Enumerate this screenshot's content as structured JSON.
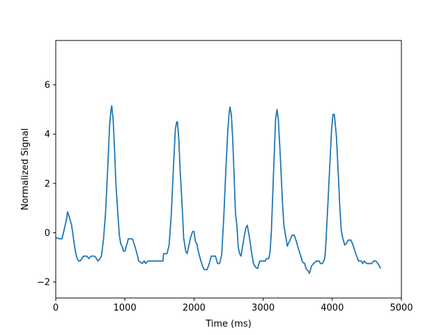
{
  "chart_data": {
    "type": "line",
    "title": "",
    "xlabel": "Time (ms)",
    "ylabel": "Normalized Signal",
    "xlim": [
      0,
      5000
    ],
    "ylim": [
      -2.65,
      7.8
    ],
    "xticks": [
      0,
      1000,
      2000,
      3000,
      4000,
      5000
    ],
    "xtick_labels": [
      "0",
      "1000",
      "2000",
      "3000",
      "4000",
      "5000"
    ],
    "yticks": [
      -2,
      0,
      2,
      4,
      6
    ],
    "ytick_labels": [
      "−2",
      "0",
      "2",
      "4",
      "6"
    ],
    "grid": false,
    "legend": "none",
    "colors": {
      "line": "#1f77b4",
      "axes": "#000000",
      "background": "#ffffff"
    },
    "series": [
      {
        "points": [
          [
            0,
            -0.2
          ],
          [
            60,
            -0.25
          ],
          [
            90,
            -0.25
          ],
          [
            120,
            0.1
          ],
          [
            160,
            0.6
          ],
          [
            170,
            0.85
          ],
          [
            200,
            0.6
          ],
          [
            230,
            0.3
          ],
          [
            260,
            -0.3
          ],
          [
            280,
            -0.7
          ],
          [
            300,
            -0.95
          ],
          [
            310,
            -1.05
          ],
          [
            330,
            -1.15
          ],
          [
            350,
            -1.15
          ],
          [
            380,
            -1.05
          ],
          [
            400,
            -0.95
          ],
          [
            450,
            -0.95
          ],
          [
            480,
            -1.05
          ],
          [
            510,
            -0.95
          ],
          [
            560,
            -0.95
          ],
          [
            590,
            -1.05
          ],
          [
            610,
            -1.15
          ],
          [
            640,
            -1.05
          ],
          [
            660,
            -0.95
          ],
          [
            690,
            -0.3
          ],
          [
            720,
            0.8
          ],
          [
            750,
            2.5
          ],
          [
            780,
            4.4
          ],
          [
            800,
            5.0
          ],
          [
            810,
            5.15
          ],
          [
            830,
            4.6
          ],
          [
            850,
            3.4
          ],
          [
            870,
            2.0
          ],
          [
            900,
            0.7
          ],
          [
            920,
            -0.1
          ],
          [
            940,
            -0.45
          ],
          [
            960,
            -0.55
          ],
          [
            980,
            -0.75
          ],
          [
            1000,
            -0.75
          ],
          [
            1030,
            -0.45
          ],
          [
            1050,
            -0.25
          ],
          [
            1110,
            -0.25
          ],
          [
            1150,
            -0.6
          ],
          [
            1180,
            -0.9
          ],
          [
            1200,
            -1.15
          ],
          [
            1250,
            -1.25
          ],
          [
            1280,
            -1.15
          ],
          [
            1300,
            -1.25
          ],
          [
            1330,
            -1.15
          ],
          [
            1550,
            -1.15
          ],
          [
            1560,
            -0.85
          ],
          [
            1610,
            -0.85
          ],
          [
            1640,
            -0.5
          ],
          [
            1670,
            0.7
          ],
          [
            1700,
            2.5
          ],
          [
            1730,
            4.2
          ],
          [
            1750,
            4.5
          ],
          [
            1760,
            4.5
          ],
          [
            1780,
            3.8
          ],
          [
            1800,
            2.5
          ],
          [
            1830,
            1.0
          ],
          [
            1850,
            -0.2
          ],
          [
            1880,
            -0.75
          ],
          [
            1900,
            -0.85
          ],
          [
            1920,
            -0.6
          ],
          [
            1950,
            -0.2
          ],
          [
            1980,
            0.05
          ],
          [
            2000,
            0.05
          ],
          [
            2020,
            -0.35
          ],
          [
            2040,
            -0.45
          ],
          [
            2070,
            -0.85
          ],
          [
            2100,
            -1.15
          ],
          [
            2130,
            -1.4
          ],
          [
            2150,
            -1.5
          ],
          [
            2190,
            -1.5
          ],
          [
            2220,
            -1.25
          ],
          [
            2250,
            -0.95
          ],
          [
            2310,
            -0.95
          ],
          [
            2340,
            -1.25
          ],
          [
            2370,
            -1.25
          ],
          [
            2400,
            -0.9
          ],
          [
            2430,
            0.6
          ],
          [
            2460,
            2.5
          ],
          [
            2490,
            4.2
          ],
          [
            2510,
            4.9
          ],
          [
            2520,
            5.1
          ],
          [
            2540,
            4.8
          ],
          [
            2560,
            3.8
          ],
          [
            2580,
            2.3
          ],
          [
            2600,
            0.8
          ],
          [
            2620,
            0.3
          ],
          [
            2640,
            -0.6
          ],
          [
            2660,
            -0.85
          ],
          [
            2680,
            -0.95
          ],
          [
            2700,
            -0.6
          ],
          [
            2730,
            -0.1
          ],
          [
            2750,
            0.2
          ],
          [
            2770,
            0.3
          ],
          [
            2800,
            -0.15
          ],
          [
            2830,
            -0.75
          ],
          [
            2860,
            -1.25
          ],
          [
            2890,
            -1.4
          ],
          [
            2920,
            -1.45
          ],
          [
            2950,
            -1.15
          ],
          [
            3030,
            -1.15
          ],
          [
            3050,
            -1.05
          ],
          [
            3080,
            -1.05
          ],
          [
            3100,
            -0.8
          ],
          [
            3120,
            0.1
          ],
          [
            3150,
            2.4
          ],
          [
            3180,
            4.6
          ],
          [
            3200,
            5.0
          ],
          [
            3220,
            4.6
          ],
          [
            3250,
            3.0
          ],
          [
            3280,
            1.2
          ],
          [
            3300,
            0.3
          ],
          [
            3330,
            -0.2
          ],
          [
            3350,
            -0.55
          ],
          [
            3370,
            -0.4
          ],
          [
            3390,
            -0.3
          ],
          [
            3420,
            -0.1
          ],
          [
            3450,
            -0.1
          ],
          [
            3480,
            -0.35
          ],
          [
            3510,
            -0.65
          ],
          [
            3540,
            -0.9
          ],
          [
            3570,
            -1.2
          ],
          [
            3600,
            -1.25
          ],
          [
            3620,
            -1.45
          ],
          [
            3650,
            -1.55
          ],
          [
            3670,
            -1.65
          ],
          [
            3700,
            -1.35
          ],
          [
            3730,
            -1.25
          ],
          [
            3770,
            -1.15
          ],
          [
            3810,
            -1.15
          ],
          [
            3830,
            -1.25
          ],
          [
            3860,
            -1.25
          ],
          [
            3890,
            -1.05
          ],
          [
            3900,
            -0.8
          ],
          [
            3930,
            0.8
          ],
          [
            3960,
            2.5
          ],
          [
            3990,
            4.2
          ],
          [
            4010,
            4.8
          ],
          [
            4030,
            4.8
          ],
          [
            4060,
            3.9
          ],
          [
            4090,
            2.2
          ],
          [
            4110,
            1.0
          ],
          [
            4130,
            0.1
          ],
          [
            4150,
            -0.2
          ],
          [
            4180,
            -0.5
          ],
          [
            4200,
            -0.45
          ],
          [
            4230,
            -0.3
          ],
          [
            4270,
            -0.3
          ],
          [
            4300,
            -0.5
          ],
          [
            4340,
            -0.85
          ],
          [
            4380,
            -1.15
          ],
          [
            4420,
            -1.15
          ],
          [
            4440,
            -1.25
          ],
          [
            4460,
            -1.15
          ],
          [
            4500,
            -1.25
          ],
          [
            4570,
            -1.25
          ],
          [
            4600,
            -1.15
          ],
          [
            4630,
            -1.15
          ],
          [
            4660,
            -1.25
          ],
          [
            4680,
            -1.35
          ],
          [
            4700,
            -1.45
          ]
        ]
      }
    ]
  }
}
